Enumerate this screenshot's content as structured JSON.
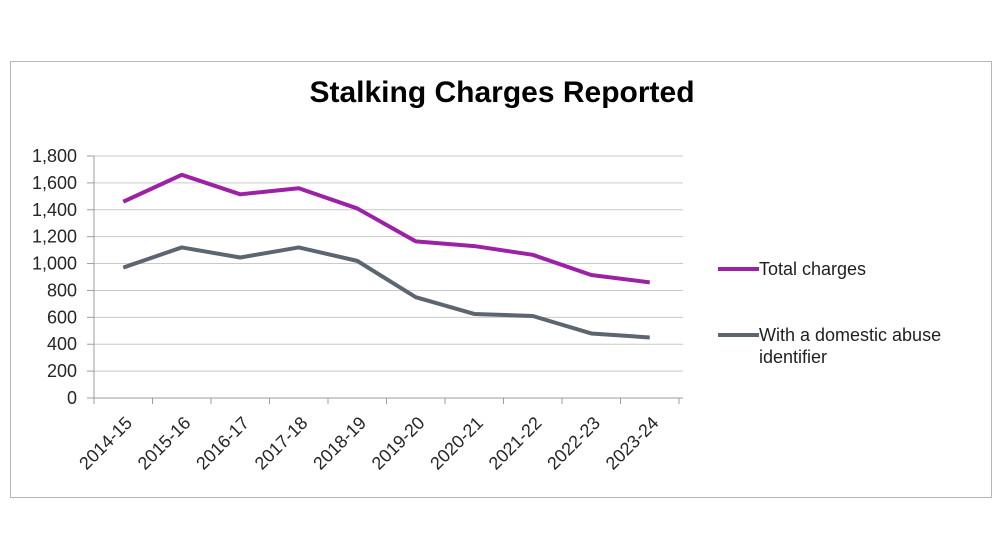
{
  "chart_data": {
    "type": "line",
    "title": "Stalking Charges Reported",
    "categories": [
      "2014-15",
      "2015-16",
      "2016-17",
      "2017-18",
      "2018-19",
      "2019-20",
      "2020-21",
      "2021-22",
      "2022-23",
      "2023-24"
    ],
    "series": [
      {
        "name": "Total charges",
        "color": "#9C21A6",
        "values": [
          1460,
          1660,
          1515,
          1560,
          1410,
          1165,
          1130,
          1065,
          915,
          860
        ]
      },
      {
        "name": "With a domestic abuse identifier",
        "color": "#5B6670",
        "values": [
          970,
          1120,
          1045,
          1120,
          1020,
          750,
          625,
          610,
          480,
          450
        ]
      }
    ],
    "xlabel": "",
    "ylabel": "",
    "ylim": [
      0,
      1800
    ],
    "ytick_values": [
      0,
      200,
      400,
      600,
      800,
      1000,
      1200,
      1400,
      1600,
      1800
    ],
    "ytick_labels": [
      "0",
      "200",
      "400",
      "600",
      "800",
      "1,000",
      "1,200",
      "1,400",
      "1,600",
      "1,800"
    ],
    "grid": true,
    "grid_color": "#c9c9c9",
    "axis_color": "#9d9d9d",
    "tick_label_color": "#262626",
    "legend_position": "right"
  }
}
